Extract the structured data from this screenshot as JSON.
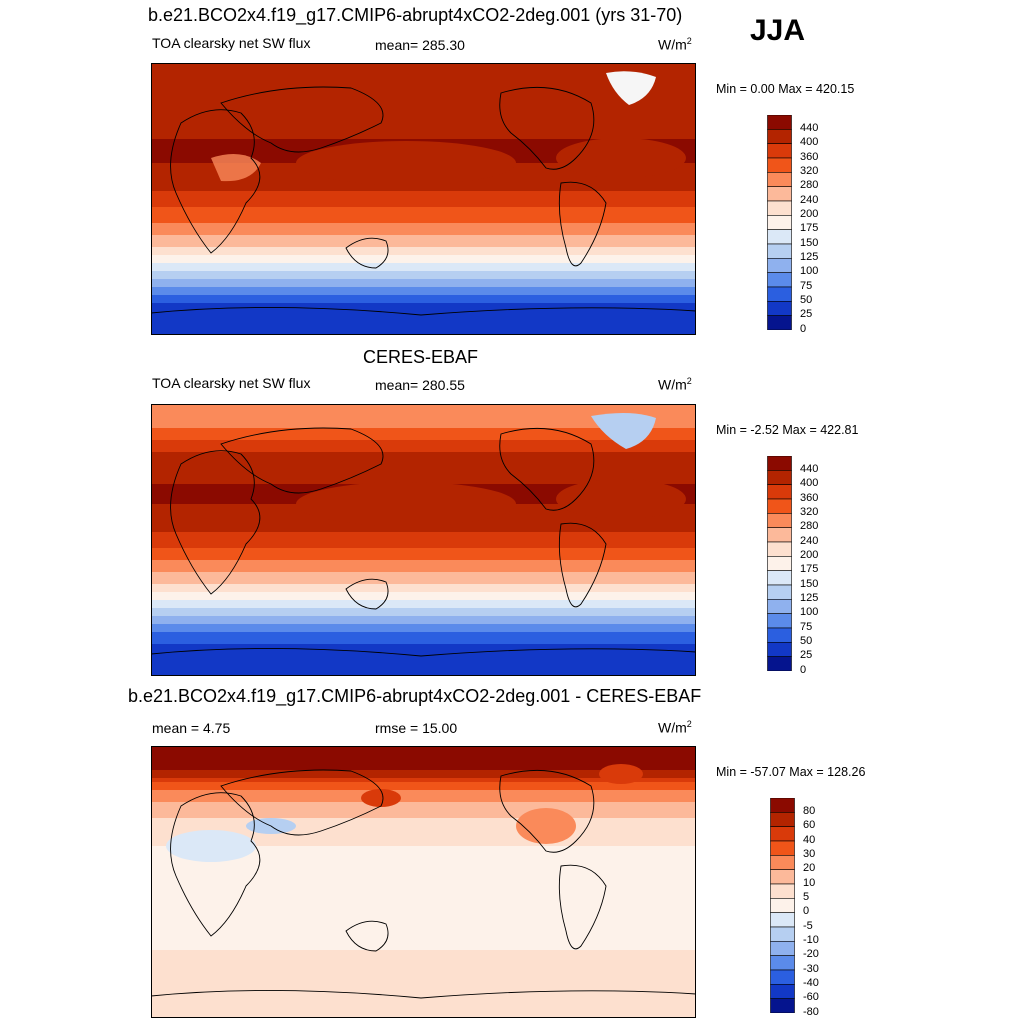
{
  "season": "JJA",
  "chart_data": [
    {
      "type": "heatmap",
      "title": "b.e21.BCO2x4.f19_g17.CMIP6-abrupt4xCO2-2deg.001 (yrs 31-70)",
      "left_label": "TOA clearsky net SW flux",
      "mean_label": "mean= 285.30",
      "units_base": "W/m",
      "units_sup": "2",
      "minmax_label": "Min =   0.00 Max = 420.15",
      "min": 0.0,
      "max": 420.15,
      "levels": [
        "440",
        "400",
        "360",
        "320",
        "280",
        "240",
        "200",
        "175",
        "150",
        "125",
        "100",
        "75",
        "50",
        "25",
        "0"
      ],
      "colors": [
        "#8b0a00",
        "#b32400",
        "#d93a0a",
        "#f05519",
        "#fa8a5a",
        "#fcb99a",
        "#fde0cf",
        "#fdf2ea",
        "#dbe8f7",
        "#b6cff1",
        "#8fb1ee",
        "#5b8bea",
        "#2b5fe0",
        "#1238c6",
        "#05148e"
      ],
      "lat_profile": [
        {
          "lat": 90,
          "value": 372
        },
        {
          "lat": 80,
          "value": 380
        },
        {
          "lat": 70,
          "value": 385
        },
        {
          "lat": 60,
          "value": 388
        },
        {
          "lat": 50,
          "value": 392
        },
        {
          "lat": 40,
          "value": 400
        },
        {
          "lat": 30,
          "value": 405
        },
        {
          "lat": 20,
          "value": 398
        },
        {
          "lat": 10,
          "value": 375
        },
        {
          "lat": 0,
          "value": 345
        },
        {
          "lat": -10,
          "value": 305
        },
        {
          "lat": -20,
          "value": 258
        },
        {
          "lat": -30,
          "value": 205
        },
        {
          "lat": -40,
          "value": 160
        },
        {
          "lat": -50,
          "value": 110
        },
        {
          "lat": -60,
          "value": 62
        },
        {
          "lat": -70,
          "value": 20
        },
        {
          "lat": -80,
          "value": 4
        },
        {
          "lat": -90,
          "value": 0
        }
      ]
    },
    {
      "type": "heatmap",
      "title": "CERES-EBAF",
      "left_label": "TOA clearsky net SW flux",
      "mean_label": "mean= 280.55",
      "units_base": "W/m",
      "units_sup": "2",
      "minmax_label": "Min =  -2.52 Max = 422.81",
      "min": -2.52,
      "max": 422.81,
      "levels": [
        "440",
        "400",
        "360",
        "320",
        "280",
        "240",
        "200",
        "175",
        "150",
        "125",
        "100",
        "75",
        "50",
        "25",
        "0"
      ],
      "colors": [
        "#8b0a00",
        "#b32400",
        "#d93a0a",
        "#f05519",
        "#fa8a5a",
        "#fcb99a",
        "#fde0cf",
        "#fdf2ea",
        "#dbe8f7",
        "#b6cff1",
        "#8fb1ee",
        "#5b8bea",
        "#2b5fe0",
        "#1238c6",
        "#05148e"
      ],
      "lat_profile": [
        {
          "lat": 90,
          "value": 250
        },
        {
          "lat": 80,
          "value": 262
        },
        {
          "lat": 70,
          "value": 300
        },
        {
          "lat": 60,
          "value": 352
        },
        {
          "lat": 50,
          "value": 380
        },
        {
          "lat": 40,
          "value": 398
        },
        {
          "lat": 30,
          "value": 405
        },
        {
          "lat": 20,
          "value": 398
        },
        {
          "lat": 10,
          "value": 372
        },
        {
          "lat": 0,
          "value": 340
        },
        {
          "lat": -10,
          "value": 300
        },
        {
          "lat": -20,
          "value": 252
        },
        {
          "lat": -30,
          "value": 200
        },
        {
          "lat": -40,
          "value": 155
        },
        {
          "lat": -50,
          "value": 105
        },
        {
          "lat": -60,
          "value": 55
        },
        {
          "lat": -70,
          "value": 16
        },
        {
          "lat": -80,
          "value": 3
        },
        {
          "lat": -90,
          "value": 0
        }
      ]
    },
    {
      "type": "heatmap",
      "title": "b.e21.BCO2x4.f19_g17.CMIP6-abrupt4xCO2-2deg.001 - CERES-EBAF",
      "left_label": "mean =   4.75",
      "mean_label": "rmse =  15.00",
      "units_base": "W/m",
      "units_sup": "2",
      "minmax_label": "Min = -57.07 Max = 128.26",
      "min": -57.07,
      "max": 128.26,
      "levels": [
        "80",
        "60",
        "40",
        "30",
        "20",
        "10",
        "5",
        "0",
        "-5",
        "-10",
        "-20",
        "-30",
        "-40",
        "-60",
        "-80"
      ],
      "colors": [
        "#8b0a00",
        "#b32400",
        "#d93a0a",
        "#f05519",
        "#fa8a5a",
        "#fcb99a",
        "#fde0cf",
        "#fdf2ea",
        "#dbe8f7",
        "#b6cff1",
        "#8fb1ee",
        "#5b8bea",
        "#2b5fe0",
        "#1238c6",
        "#05148e"
      ],
      "lat_profile": [
        {
          "lat": 90,
          "value": 110
        },
        {
          "lat": 80,
          "value": 90
        },
        {
          "lat": 70,
          "value": 40
        },
        {
          "lat": 60,
          "value": 20
        },
        {
          "lat": 50,
          "value": 8
        },
        {
          "lat": 40,
          "value": 4
        },
        {
          "lat": 30,
          "value": 2
        },
        {
          "lat": 20,
          "value": -2
        },
        {
          "lat": 10,
          "value": -1
        },
        {
          "lat": 0,
          "value": -2
        },
        {
          "lat": -10,
          "value": -2
        },
        {
          "lat": -20,
          "value": -3
        },
        {
          "lat": -30,
          "value": -3
        },
        {
          "lat": -40,
          "value": -2
        },
        {
          "lat": -50,
          "value": 3
        },
        {
          "lat": -60,
          "value": 2
        },
        {
          "lat": -70,
          "value": 3
        },
        {
          "lat": -80,
          "value": 2
        },
        {
          "lat": -90,
          "value": 2
        }
      ]
    }
  ]
}
